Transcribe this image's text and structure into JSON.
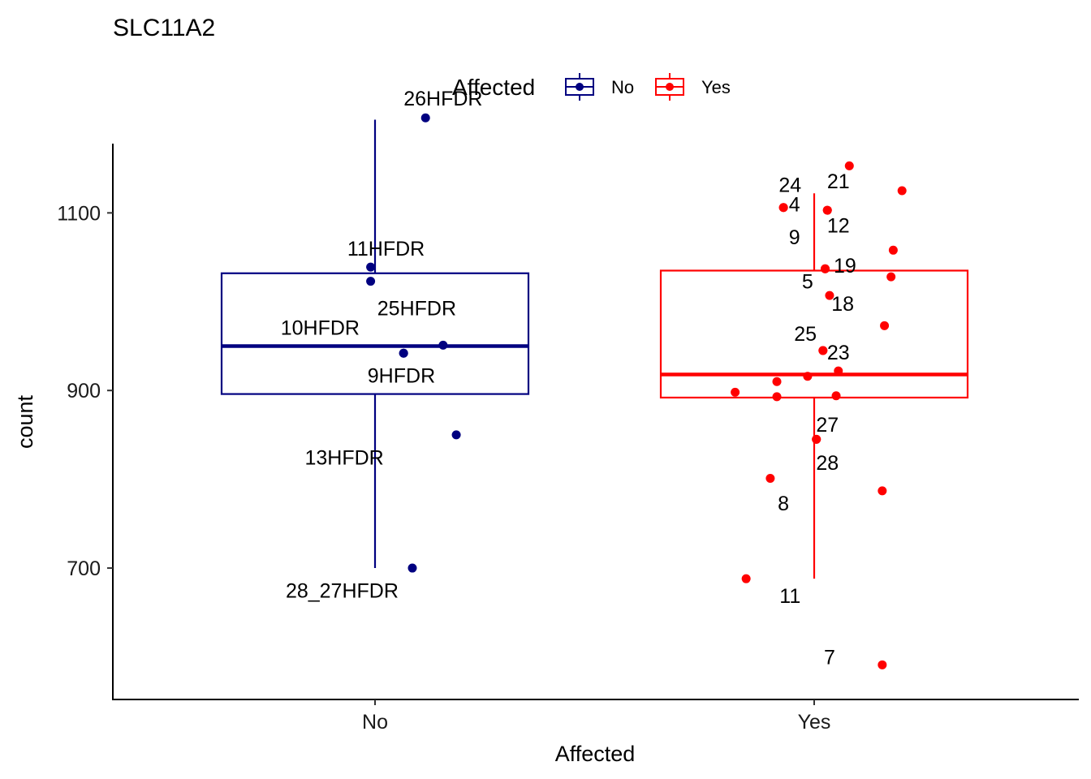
{
  "chart_data": {
    "type": "boxplot",
    "title": "SLC11A2",
    "xlabel": "Affected",
    "ylabel": "count",
    "ylim": [
      552,
      1178
    ],
    "yticks": [
      700,
      900,
      1100
    ],
    "categories": [
      "No",
      "Yes"
    ],
    "legend": {
      "title": "Affected",
      "position": "top",
      "items": [
        {
          "label": "No",
          "color": "#000080"
        },
        {
          "label": "Yes",
          "color": "#ff0000"
        }
      ]
    },
    "boxes": [
      {
        "category": "No",
        "color": "#000080",
        "whisker_low": 700,
        "q1": 896,
        "median": 950,
        "q3": 1032,
        "whisker_high": 1205
      },
      {
        "category": "Yes",
        "color": "#ff0000",
        "whisker_low": 688,
        "q1": 892,
        "median": 918,
        "q3": 1035,
        "whisker_high": 1122
      }
    ],
    "points": [
      {
        "group": "No",
        "jitter": 0.23,
        "y": 1207,
        "label": "26HFDR",
        "label_dx": 0.08,
        "label_dy": 22
      },
      {
        "group": "No",
        "jitter": -0.02,
        "y": 1039,
        "label": "11HFDR",
        "label_dx": 0.07,
        "label_dy": 21
      },
      {
        "group": "No",
        "jitter": -0.02,
        "y": 1023,
        "label": "",
        "label_dx": 0,
        "label_dy": 0
      },
      {
        "group": "No",
        "jitter": 0.31,
        "y": 951,
        "label": "25HFDR",
        "label_dx": -0.12,
        "label_dy": 42
      },
      {
        "group": "No",
        "jitter": 0.13,
        "y": 942,
        "label": "10HFDR",
        "label_dx": -0.38,
        "label_dy": 29
      },
      {
        "group": "No",
        "jitter": 0.13,
        "y": 942,
        "label": "9HFDR",
        "label_dx": -0.01,
        "label_dy": -25
      },
      {
        "group": "No",
        "jitter": 0.37,
        "y": 850,
        "label": "13HFDR",
        "label_dx": -0.51,
        "label_dy": -25
      },
      {
        "group": "No",
        "jitter": 0.17,
        "y": 700,
        "label": "28_27HFDR",
        "label_dx": -0.32,
        "label_dy": -25
      },
      {
        "group": "Yes",
        "jitter": 0.16,
        "y": 1153,
        "label": "24",
        "label_dx": -0.27,
        "label_dy": -21
      },
      {
        "group": "Yes",
        "jitter": 0.4,
        "y": 1125,
        "label": "",
        "label_dx": 0,
        "label_dy": 0
      },
      {
        "group": "Yes",
        "jitter": 0.06,
        "y": 1103,
        "label": "21",
        "label_dx": 0.05,
        "label_dy": 33
      },
      {
        "group": "Yes",
        "jitter": -0.14,
        "y": 1106,
        "label": "4",
        "label_dx": 0.05,
        "label_dy": 4
      },
      {
        "group": "Yes",
        "jitter": 0.06,
        "y": 1103,
        "label": "12",
        "label_dx": 0.05,
        "label_dy": -17
      },
      {
        "group": "Yes",
        "jitter": 0.36,
        "y": 1058,
        "label": "",
        "label_dx": 0,
        "label_dy": 0
      },
      {
        "group": "Yes",
        "jitter": -0.14,
        "y": 1106,
        "label": "9",
        "label_dx": 0.05,
        "label_dy": -33
      },
      {
        "group": "Yes",
        "jitter": 0.05,
        "y": 1037,
        "label": "19",
        "label_dx": 0.09,
        "label_dy": 4
      },
      {
        "group": "Yes",
        "jitter": 0.35,
        "y": 1028,
        "label": "",
        "label_dx": 0,
        "label_dy": 0
      },
      {
        "group": "Yes",
        "jitter": 0.07,
        "y": 1007,
        "label": "18",
        "label_dx": 0.06,
        "label_dy": -9
      },
      {
        "group": "Yes",
        "jitter": 0.05,
        "y": 1037,
        "label": "5",
        "label_dx": -0.08,
        "label_dy": -14
      },
      {
        "group": "Yes",
        "jitter": 0.32,
        "y": 973,
        "label": "",
        "label_dx": 0,
        "label_dy": 0
      },
      {
        "group": "Yes",
        "jitter": 0.04,
        "y": 945,
        "label": "25",
        "label_dx": -0.08,
        "label_dy": 19
      },
      {
        "group": "Yes",
        "jitter": 0.04,
        "y": 945,
        "label": "23",
        "label_dx": 0.07,
        "label_dy": -2
      },
      {
        "group": "Yes",
        "jitter": 0.11,
        "y": 922,
        "label": "",
        "label_dx": 0,
        "label_dy": 0
      },
      {
        "group": "Yes",
        "jitter": -0.03,
        "y": 916,
        "label": "",
        "label_dx": 0,
        "label_dy": 0
      },
      {
        "group": "Yes",
        "jitter": -0.17,
        "y": 910,
        "label": "",
        "label_dx": 0,
        "label_dy": 0
      },
      {
        "group": "Yes",
        "jitter": -0.36,
        "y": 898,
        "label": "",
        "label_dx": 0,
        "label_dy": 0
      },
      {
        "group": "Yes",
        "jitter": -0.17,
        "y": 893,
        "label": "",
        "label_dx": 0,
        "label_dy": 0
      },
      {
        "group": "Yes",
        "jitter": 0.1,
        "y": 894,
        "label": "",
        "label_dx": 0,
        "label_dy": 0
      },
      {
        "group": "Yes",
        "jitter": 0.01,
        "y": 845,
        "label": "27",
        "label_dx": 0.05,
        "label_dy": 17
      },
      {
        "group": "Yes",
        "jitter": 0.01,
        "y": 845,
        "label": "28",
        "label_dx": 0.05,
        "label_dy": -26
      },
      {
        "group": "Yes",
        "jitter": -0.2,
        "y": 801,
        "label": "8",
        "label_dx": 0.06,
        "label_dy": -28
      },
      {
        "group": "Yes",
        "jitter": 0.31,
        "y": 787,
        "label": "",
        "label_dx": 0,
        "label_dy": 0
      },
      {
        "group": "Yes",
        "jitter": -0.31,
        "y": 688,
        "label": "11",
        "label_dx": 0.2,
        "label_dy": -19
      },
      {
        "group": "Yes",
        "jitter": 0.31,
        "y": 591,
        "label": "7",
        "label_dx": -0.24,
        "label_dy": 9
      }
    ]
  }
}
